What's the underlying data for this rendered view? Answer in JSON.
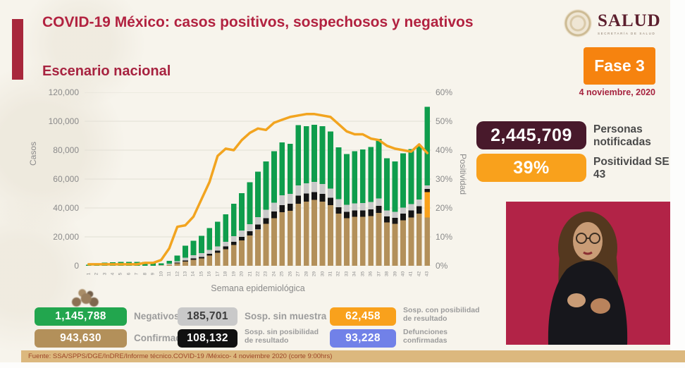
{
  "header": {
    "title": "COVID-19 México: casos positivos, sospechosos y negativos",
    "logo_name": "SALUD",
    "logo_subtitle": "SECRETARÍA DE SALUD"
  },
  "section_title": "Escenario nacional",
  "phase_badge": "Fase 3",
  "date_label": "4 noviembre, 2020",
  "stats": [
    {
      "value": "2,445,709",
      "label": "Personas notificadas",
      "color": "#48192b"
    },
    {
      "value": "39%",
      "label": "Positividad SE 43",
      "color": "#f9a11c"
    }
  ],
  "legend": {
    "items": [
      {
        "value": "1,145,788",
        "label": "Negativos",
        "bg": "#22a64e",
        "fg": "#ffffff"
      },
      {
        "value": "185,701",
        "label": "Sosp. sin muestra",
        "bg": "#c9c9c9",
        "fg": "#3c3c3c"
      },
      {
        "value": "62,458",
        "label": "Sosp. con posibilidad de resultado",
        "bg": "#f9a11c",
        "fg": "#ffffff"
      },
      {
        "value": "943,630",
        "label": "Confirmados",
        "bg": "#b3905a",
        "fg": "#ffffff"
      },
      {
        "value": "108,132",
        "label": "Sosp. sin posibilidad de resultado",
        "bg": "#111111",
        "fg": "#ffffff"
      },
      {
        "value": "93,228",
        "label": "Defunciones confirmadas",
        "bg": "#7181e8",
        "fg": "#ffffff"
      }
    ]
  },
  "footer": "Fuente: SSA/SPPS/DGE/InDRE/Informe técnico.COVID-19 /México- 4 noviembre 2020 (corte 9:00hrs)",
  "chart_data": {
    "type": "bar",
    "subtype": "stacked-bars-with-line",
    "title": "Escenario nacional",
    "xlabel": "Semana epidemiológica",
    "ylabel": "Casos",
    "ylabel_right": "Positividad",
    "ylim": [
      0,
      120000
    ],
    "ylim_right_pct": [
      0,
      60
    ],
    "grid": true,
    "legend_position": "bottom",
    "categories": [
      1,
      2,
      3,
      4,
      5,
      6,
      7,
      8,
      9,
      10,
      11,
      12,
      13,
      14,
      15,
      16,
      17,
      18,
      19,
      20,
      21,
      22,
      23,
      24,
      25,
      26,
      27,
      28,
      29,
      30,
      31,
      32,
      33,
      34,
      35,
      36,
      37,
      38,
      39,
      40,
      41,
      42,
      43
    ],
    "series": [
      {
        "name": "Confirmados",
        "color": "#b3905a",
        "values": [
          0,
          0,
          0,
          0,
          0,
          0,
          0,
          0,
          0,
          300,
          800,
          1800,
          3000,
          4200,
          5200,
          7000,
          9000,
          11500,
          14500,
          17500,
          21000,
          25000,
          29000,
          33000,
          37000,
          38000,
          43000,
          44500,
          45500,
          44500,
          42000,
          36000,
          33000,
          34000,
          34000,
          34500,
          36500,
          30000,
          29000,
          31500,
          33500,
          36000,
          33500
        ]
      },
      {
        "name": "Sosp. con posibilidad de resultado",
        "color": "#f9a11c",
        "values": [
          0,
          0,
          0,
          0,
          0,
          0,
          0,
          0,
          0,
          0,
          0,
          0,
          0,
          0,
          0,
          0,
          0,
          0,
          0,
          0,
          0,
          0,
          0,
          0,
          0,
          0,
          0,
          0,
          0,
          0,
          0,
          0,
          0,
          0,
          0,
          0,
          0,
          0,
          0,
          0,
          0,
          0,
          17500
        ]
      },
      {
        "name": "Sosp. sin posibilidad de resultado",
        "color": "#151515",
        "values": [
          0,
          0,
          0,
          0,
          0,
          0,
          0,
          0,
          0,
          0,
          0,
          400,
          700,
          900,
          1000,
          1200,
          1500,
          1800,
          2200,
          2600,
          3000,
          3500,
          4000,
          4500,
          5000,
          5000,
          5500,
          5500,
          5500,
          5200,
          5000,
          4500,
          4200,
          4200,
          4400,
          4600,
          5000,
          4200,
          4200,
          4600,
          4800,
          5200,
          2200
        ]
      },
      {
        "name": "Sosp. sin muestra",
        "color": "#c9c9c9",
        "values": [
          0,
          0,
          0,
          0,
          0,
          0,
          0,
          0,
          0,
          200,
          700,
          1000,
          1800,
          2300,
          2500,
          2800,
          3000,
          3300,
          3800,
          4200,
          4800,
          5200,
          5800,
          6200,
          6800,
          6800,
          7200,
          7000,
          7000,
          6800,
          6500,
          5500,
          5000,
          5000,
          5000,
          5000,
          5200,
          4200,
          4000,
          4200,
          4500,
          4600,
          2400
        ]
      },
      {
        "name": "Negativos",
        "color": "#0f9d4c",
        "values": [
          800,
          1500,
          2200,
          2500,
          2600,
          2600,
          2600,
          2600,
          2200,
          1200,
          2000,
          3800,
          8500,
          10000,
          12000,
          15000,
          17000,
          19000,
          22500,
          26000,
          29000,
          31500,
          33500,
          35500,
          36500,
          34500,
          41500,
          39500,
          39500,
          40000,
          39500,
          36000,
          35000,
          36000,
          37000,
          38000,
          41000,
          36000,
          35000,
          37500,
          38000,
          37500,
          54500
        ]
      }
    ],
    "line": {
      "name": "Positividad (%)",
      "color": "#f2a41f",
      "axis": "right",
      "values": [
        0.5,
        0.5,
        0.5,
        0.5,
        0.5,
        0.5,
        0.5,
        1,
        1,
        2,
        6,
        13.5,
        14,
        17,
        23,
        29,
        38,
        40.5,
        40,
        43.5,
        46,
        47.5,
        47,
        49.5,
        50.5,
        51.5,
        52,
        52.5,
        52.5,
        52,
        51.5,
        49,
        46.5,
        45.5,
        45.5,
        44,
        43.5,
        41.5,
        40.5,
        40,
        39.5,
        42,
        39
      ]
    },
    "yticks": [
      0,
      20000,
      40000,
      60000,
      80000,
      100000,
      120000
    ],
    "yticks_right": [
      "0%",
      "10%",
      "20%",
      "30%",
      "40%",
      "50%",
      "60%"
    ]
  }
}
